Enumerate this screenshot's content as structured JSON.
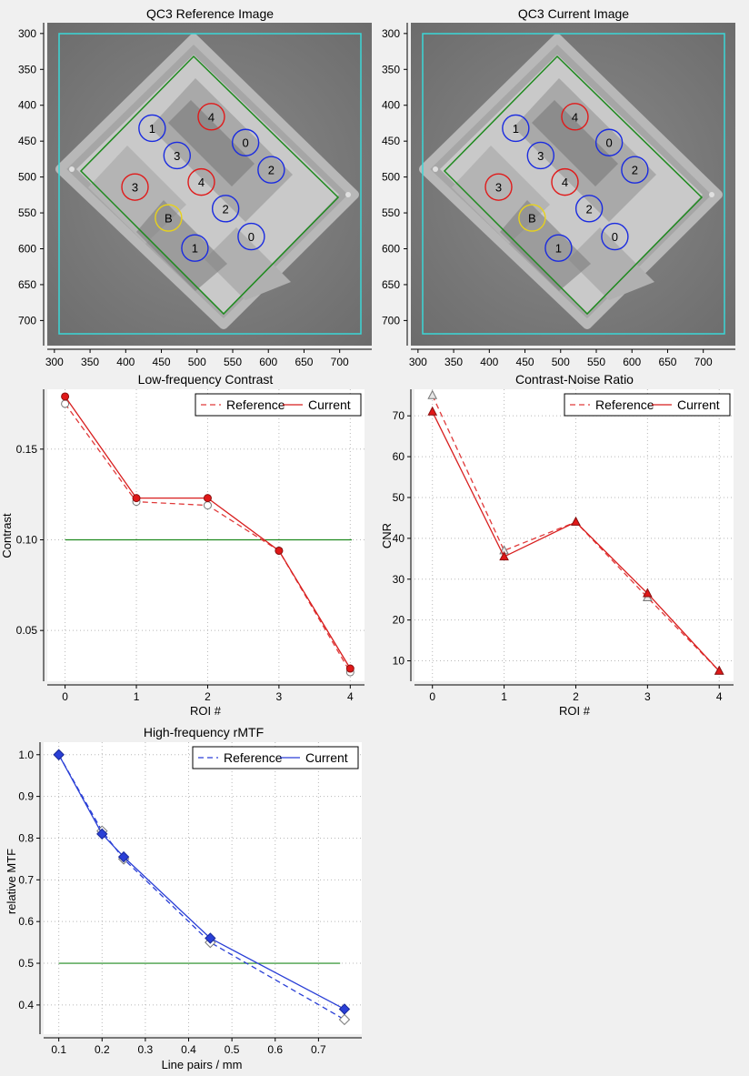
{
  "colors": {
    "reference": "#e03a3a",
    "current": "#d81e1e",
    "mtf": "#2a3fd6",
    "threshold": "#1f8a1f",
    "roi_blue": "#1a2be0",
    "roi_red": "#e01a1a",
    "roi_yellow": "#e8d21a",
    "frame_cyan": "#3ad7d7",
    "frame_green": "#1f8a1f"
  },
  "images": [
    {
      "title": "QC3 Reference Image",
      "xticks": [
        "300",
        "350",
        "400",
        "450",
        "500",
        "550",
        "600",
        "650",
        "700"
      ],
      "yticks": [
        "300",
        "350",
        "400",
        "450",
        "500",
        "550",
        "600",
        "650",
        "700"
      ],
      "xlim": [
        290,
        745
      ],
      "ylim": [
        285,
        735
      ],
      "rois": [
        {
          "label": "1",
          "x": 437,
          "y": 432,
          "color": "blue"
        },
        {
          "label": "3",
          "x": 472,
          "y": 470,
          "color": "blue"
        },
        {
          "label": "4",
          "x": 520,
          "y": 416,
          "color": "red"
        },
        {
          "label": "0",
          "x": 568,
          "y": 452,
          "color": "blue"
        },
        {
          "label": "2",
          "x": 604,
          "y": 490,
          "color": "blue"
        },
        {
          "label": "3",
          "x": 413,
          "y": 514,
          "color": "red"
        },
        {
          "label": "4",
          "x": 506,
          "y": 507,
          "color": "red"
        },
        {
          "label": "2",
          "x": 540,
          "y": 544,
          "color": "blue"
        },
        {
          "label": "B",
          "x": 460,
          "y": 557,
          "color": "yellow"
        },
        {
          "label": "0",
          "x": 576,
          "y": 583,
          "color": "blue"
        },
        {
          "label": "1",
          "x": 497,
          "y": 599,
          "color": "blue"
        }
      ]
    },
    {
      "title": "QC3 Current Image",
      "xticks": [
        "300",
        "350",
        "400",
        "450",
        "500",
        "550",
        "600",
        "650",
        "700"
      ],
      "yticks": [
        "300",
        "350",
        "400",
        "450",
        "500",
        "550",
        "600",
        "650",
        "700"
      ],
      "xlim": [
        290,
        745
      ],
      "ylim": [
        285,
        735
      ],
      "rois": [
        {
          "label": "1",
          "x": 437,
          "y": 432,
          "color": "blue"
        },
        {
          "label": "3",
          "x": 472,
          "y": 470,
          "color": "blue"
        },
        {
          "label": "4",
          "x": 520,
          "y": 416,
          "color": "red"
        },
        {
          "label": "0",
          "x": 568,
          "y": 452,
          "color": "blue"
        },
        {
          "label": "2",
          "x": 604,
          "y": 490,
          "color": "blue"
        },
        {
          "label": "3",
          "x": 413,
          "y": 514,
          "color": "red"
        },
        {
          "label": "4",
          "x": 506,
          "y": 507,
          "color": "red"
        },
        {
          "label": "2",
          "x": 540,
          "y": 544,
          "color": "blue"
        },
        {
          "label": "B",
          "x": 460,
          "y": 557,
          "color": "yellow"
        },
        {
          "label": "0",
          "x": 576,
          "y": 583,
          "color": "blue"
        },
        {
          "label": "1",
          "x": 497,
          "y": 599,
          "color": "blue"
        }
      ]
    }
  ],
  "chart_data": [
    {
      "type": "line",
      "title": "Low-frequency Contrast",
      "xlabel": "ROI #",
      "ylabel": "Contrast",
      "x": [
        0,
        1,
        2,
        3,
        4
      ],
      "xticks": [
        "0",
        "1",
        "2",
        "3",
        "4"
      ],
      "yticks": [
        "0.05",
        "0.10",
        "0.15"
      ],
      "xlim": [
        -0.25,
        4.2
      ],
      "ylim": [
        0.022,
        0.183
      ],
      "threshold": 0.1,
      "legend_position": "top-right",
      "marker": "circle",
      "series": [
        {
          "name": "Reference",
          "style": "dashed",
          "values": [
            0.175,
            0.121,
            0.119,
            0.094,
            0.027
          ]
        },
        {
          "name": "Current",
          "style": "solid",
          "values": [
            0.179,
            0.123,
            0.123,
            0.094,
            0.029
          ]
        }
      ]
    },
    {
      "type": "line",
      "title": "Contrast-Noise Ratio",
      "xlabel": "ROI #",
      "ylabel": "CNR",
      "x": [
        0,
        1,
        2,
        3,
        4
      ],
      "xticks": [
        "0",
        "1",
        "2",
        "3",
        "4"
      ],
      "yticks": [
        "10",
        "20",
        "30",
        "40",
        "50",
        "60",
        "70"
      ],
      "xlim": [
        -0.25,
        4.2
      ],
      "ylim": [
        5,
        76.5
      ],
      "threshold": null,
      "legend_position": "top-right",
      "marker": "triangle",
      "series": [
        {
          "name": "Reference",
          "style": "dashed",
          "values": [
            75.0,
            37.0,
            44.0,
            25.5,
            7.5
          ]
        },
        {
          "name": "Current",
          "style": "solid",
          "values": [
            71.0,
            35.5,
            44.0,
            26.5,
            7.5
          ]
        }
      ]
    },
    {
      "type": "line",
      "title": "High-frequency rMTF",
      "xlabel": "Line pairs / mm",
      "ylabel": "relative MTF",
      "x": [
        0.1,
        0.2,
        0.25,
        0.45,
        0.76
      ],
      "xticks": [
        "0.1",
        "0.2",
        "0.3",
        "0.4",
        "0.5",
        "0.6",
        "0.7"
      ],
      "yticks": [
        "0.4",
        "0.5",
        "0.6",
        "0.7",
        "0.8",
        "0.9",
        "1.0"
      ],
      "xlim": [
        0.065,
        0.8
      ],
      "ylim": [
        0.33,
        1.03
      ],
      "threshold": 0.5,
      "legend_position": "top-right",
      "marker": "diamond",
      "series": [
        {
          "name": "Reference",
          "style": "dashed",
          "values": [
            1.0,
            0.817,
            0.75,
            0.55,
            0.365
          ]
        },
        {
          "name": "Current",
          "style": "solid",
          "values": [
            1.0,
            0.81,
            0.755,
            0.56,
            0.39
          ]
        }
      ]
    }
  ]
}
